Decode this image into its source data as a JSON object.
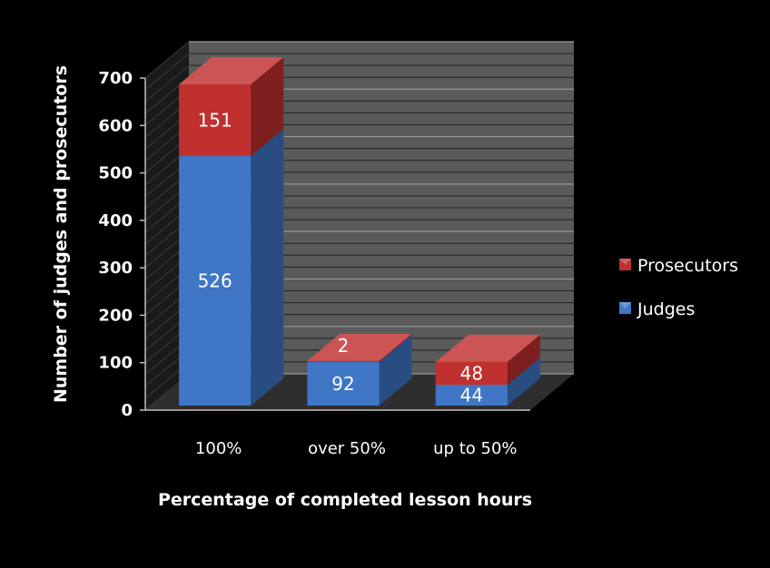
{
  "chart_data": {
    "type": "bar",
    "stacked": true,
    "three_d": true,
    "categories": [
      "100%",
      "over 50%",
      "up to 50%"
    ],
    "series": [
      {
        "name": "Judges",
        "values": [
          526,
          92,
          44
        ],
        "color": "#3f76c6"
      },
      {
        "name": "Prosecutors",
        "values": [
          151,
          2,
          48
        ],
        "color": "#c0302f"
      }
    ],
    "xlabel": "Percentage of completed lesson hours",
    "ylabel": "Number of judges and prosecutors",
    "ylim": [
      0,
      700
    ],
    "yticks": [
      0,
      100,
      200,
      300,
      400,
      500,
      600,
      700
    ],
    "grid": true,
    "legend": "right",
    "background": "#000000",
    "wall_color": "#5a5a5a",
    "floor_color": "#2e2e2e"
  }
}
